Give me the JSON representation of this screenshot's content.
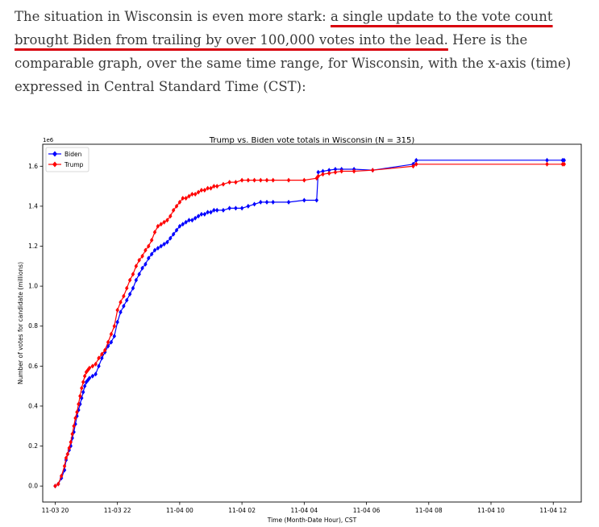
{
  "article": {
    "text_before": "The situation in Wisconsin is even more stark: ",
    "link_text": "a single update to the vote count brought Biden from trailing by over 100,000 votes into the lead.",
    "text_after": " Here is the comparable graph, over the same time range, for Wisconsin, with the x-axis (time) expressed in Central Standard Time (CST):"
  },
  "chart_data": {
    "type": "line",
    "title": "Trump vs. Biden vote totals in Wisconsin (N = 315)",
    "xlabel": "Time (Month-Date Hour), CST",
    "ylabel": "Number of votes for candidate (millions)",
    "y_offset_label": "1e6",
    "x_unit": "hours from 11-03 20:00",
    "xlim": [
      -0.4,
      16.9
    ],
    "ylim": [
      -0.08,
      1.71
    ],
    "x_ticks": [
      0,
      2,
      4,
      6,
      8,
      10,
      12,
      14,
      16
    ],
    "x_tick_labels": [
      "11-03 20",
      "11-03 22",
      "11-04 00",
      "11-04 02",
      "11-04 04",
      "11-04 06",
      "11-04 08",
      "11-04 10",
      "11-04 12"
    ],
    "y_ticks": [
      0.0,
      0.2,
      0.4,
      0.6,
      0.8,
      1.0,
      1.2,
      1.4,
      1.6
    ],
    "y_tick_labels": [
      "0.0",
      "0.2",
      "0.4",
      "0.6",
      "0.8",
      "1.0",
      "1.2",
      "1.4",
      "1.6"
    ],
    "legend": {
      "position": "top-left"
    },
    "series": [
      {
        "name": "Biden",
        "color": "#0000ff",
        "x": [
          0.0,
          0.1,
          0.2,
          0.3,
          0.35,
          0.4,
          0.45,
          0.5,
          0.55,
          0.6,
          0.65,
          0.7,
          0.75,
          0.8,
          0.85,
          0.9,
          0.95,
          1.0,
          1.05,
          1.1,
          1.2,
          1.3,
          1.4,
          1.5,
          1.6,
          1.7,
          1.8,
          1.9,
          2.0,
          2.1,
          2.2,
          2.3,
          2.4,
          2.5,
          2.6,
          2.7,
          2.8,
          2.9,
          3.0,
          3.1,
          3.2,
          3.3,
          3.4,
          3.5,
          3.6,
          3.7,
          3.8,
          3.9,
          4.0,
          4.1,
          4.2,
          4.3,
          4.4,
          4.5,
          4.6,
          4.7,
          4.8,
          4.9,
          5.0,
          5.1,
          5.2,
          5.4,
          5.6,
          5.8,
          6.0,
          6.2,
          6.4,
          6.6,
          6.8,
          7.0,
          7.5,
          8.0,
          8.4,
          8.45,
          8.6,
          8.8,
          9.0,
          9.2,
          9.6,
          10.2,
          11.5,
          11.6,
          15.8,
          16.3,
          16.35
        ],
        "values": [
          0.0,
          0.01,
          0.04,
          0.08,
          0.13,
          0.16,
          0.18,
          0.2,
          0.24,
          0.27,
          0.31,
          0.35,
          0.38,
          0.41,
          0.44,
          0.47,
          0.5,
          0.52,
          0.53,
          0.54,
          0.55,
          0.56,
          0.6,
          0.64,
          0.67,
          0.7,
          0.72,
          0.75,
          0.82,
          0.87,
          0.9,
          0.93,
          0.96,
          0.99,
          1.03,
          1.06,
          1.09,
          1.11,
          1.14,
          1.16,
          1.18,
          1.19,
          1.2,
          1.21,
          1.22,
          1.24,
          1.26,
          1.28,
          1.3,
          1.31,
          1.32,
          1.33,
          1.33,
          1.34,
          1.35,
          1.36,
          1.36,
          1.37,
          1.37,
          1.38,
          1.38,
          1.38,
          1.39,
          1.39,
          1.39,
          1.4,
          1.41,
          1.42,
          1.42,
          1.42,
          1.42,
          1.43,
          1.43,
          1.57,
          1.575,
          1.58,
          1.585,
          1.585,
          1.585,
          1.58,
          1.61,
          1.63,
          1.63,
          1.63,
          1.63
        ]
      },
      {
        "name": "Trump",
        "color": "#ff0000",
        "x": [
          0.0,
          0.1,
          0.2,
          0.3,
          0.35,
          0.4,
          0.45,
          0.5,
          0.55,
          0.6,
          0.65,
          0.7,
          0.75,
          0.8,
          0.85,
          0.9,
          0.95,
          1.0,
          1.05,
          1.1,
          1.2,
          1.3,
          1.4,
          1.5,
          1.6,
          1.7,
          1.8,
          1.9,
          2.0,
          2.1,
          2.2,
          2.3,
          2.4,
          2.5,
          2.6,
          2.7,
          2.8,
          2.9,
          3.0,
          3.1,
          3.2,
          3.3,
          3.4,
          3.5,
          3.6,
          3.7,
          3.8,
          3.9,
          4.0,
          4.1,
          4.2,
          4.3,
          4.4,
          4.5,
          4.6,
          4.7,
          4.8,
          4.9,
          5.0,
          5.1,
          5.2,
          5.4,
          5.6,
          5.8,
          6.0,
          6.2,
          6.4,
          6.6,
          6.8,
          7.0,
          7.5,
          8.0,
          8.4,
          8.45,
          8.6,
          8.8,
          9.0,
          9.2,
          9.6,
          10.2,
          11.5,
          11.6,
          15.8,
          16.3,
          16.35
        ],
        "values": [
          0.0,
          0.01,
          0.05,
          0.1,
          0.14,
          0.16,
          0.19,
          0.22,
          0.26,
          0.3,
          0.34,
          0.37,
          0.41,
          0.45,
          0.49,
          0.52,
          0.55,
          0.57,
          0.58,
          0.59,
          0.6,
          0.61,
          0.64,
          0.66,
          0.68,
          0.72,
          0.76,
          0.8,
          0.88,
          0.92,
          0.95,
          0.99,
          1.03,
          1.06,
          1.1,
          1.13,
          1.15,
          1.18,
          1.2,
          1.23,
          1.27,
          1.3,
          1.31,
          1.32,
          1.33,
          1.35,
          1.38,
          1.4,
          1.42,
          1.44,
          1.44,
          1.45,
          1.46,
          1.46,
          1.47,
          1.48,
          1.48,
          1.49,
          1.49,
          1.5,
          1.5,
          1.51,
          1.52,
          1.52,
          1.53,
          1.53,
          1.53,
          1.53,
          1.53,
          1.53,
          1.53,
          1.53,
          1.54,
          1.55,
          1.56,
          1.565,
          1.57,
          1.575,
          1.575,
          1.58,
          1.6,
          1.61,
          1.61,
          1.61,
          1.61
        ]
      }
    ]
  }
}
